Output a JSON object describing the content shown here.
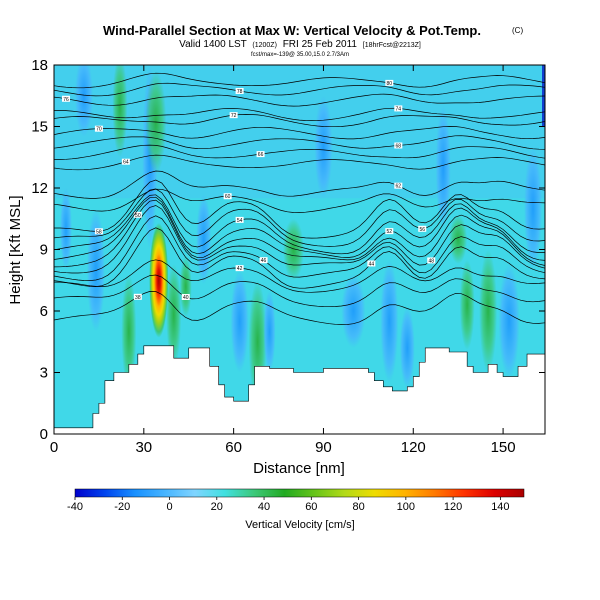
{
  "chart_data": {
    "type": "heatmap",
    "title": "Wind-Parallel Section at Max W: Vertical Velocity & Pot.Temp.",
    "title_mark": "(C)",
    "subtitle": "Valid 1400 LST",
    "subtitle_small_1": "(1200Z)",
    "subtitle_date": "FRI 25 Feb 2011",
    "subtitle_small_2": "[18hrFcst@2213Z]",
    "info_line": "fcst/max=-139@ 35.00,15.0  2.7/3Am",
    "xlabel": "Distance [nm]",
    "ylabel": "Height [Kft MSL]",
    "xlim": [
      0,
      164
    ],
    "ylim": [
      0,
      18
    ],
    "xticks": [
      0,
      30,
      60,
      90,
      120,
      150
    ],
    "yticks": [
      0,
      3,
      6,
      9,
      12,
      15,
      18
    ],
    "colorbar": {
      "label": "Vertical Velocity [cm/s]",
      "min": -40,
      "max": 150,
      "ticks": [
        -40,
        -20,
        0,
        20,
        40,
        60,
        80,
        100,
        120,
        140
      ],
      "colors": [
        "#0000cc",
        "#0044ee",
        "#1890ff",
        "#46b4ff",
        "#7fd4ff",
        "#40e0e0",
        "#3cc878",
        "#22aa22",
        "#66c41a",
        "#b2da18",
        "#eedc00",
        "#ffb400",
        "#ff7a00",
        "#ff3200",
        "#dd0000",
        "#aa0000"
      ]
    },
    "terrain_profile": {
      "x": [
        0,
        5,
        10,
        13,
        15,
        17,
        20,
        22,
        25,
        28,
        30,
        33,
        38,
        40,
        42,
        45,
        48,
        52,
        55,
        57,
        60,
        63,
        65,
        67,
        70,
        72,
        75,
        80,
        85,
        90,
        95,
        100,
        105,
        107,
        110,
        113,
        115,
        118,
        120,
        122,
        124,
        128,
        132,
        135,
        138,
        140,
        143,
        145,
        148,
        150,
        152,
        155,
        158,
        160,
        164
      ],
      "height_kft": [
        0.3,
        0.3,
        0.3,
        1.0,
        1.5,
        2.6,
        3.0,
        3.0,
        3.4,
        3.9,
        4.3,
        4.3,
        4.3,
        3.7,
        3.7,
        4.2,
        4.2,
        3.3,
        2.4,
        1.8,
        1.6,
        1.6,
        2.4,
        3.3,
        3.3,
        3.2,
        3.2,
        3.0,
        3.0,
        3.2,
        3.2,
        3.2,
        3.0,
        2.6,
        2.3,
        2.1,
        2.1,
        2.3,
        2.8,
        3.5,
        4.2,
        4.2,
        4.0,
        4.0,
        3.3,
        3.0,
        3.0,
        3.4,
        3.0,
        2.8,
        2.8,
        3.3,
        3.9,
        3.9,
        3.9
      ]
    },
    "theta_contours": [
      {
        "id": 0,
        "label": "38",
        "label_x": 28,
        "mean_kft": 6.0
      },
      {
        "id": 1,
        "label": "40",
        "label_x": 44,
        "mean_kft": 6.9
      },
      {
        "id": 2,
        "label": "42",
        "label_x": 62,
        "mean_kft": 7.6
      },
      {
        "id": 3,
        "label": "44",
        "label_x": 106,
        "mean_kft": 8.1
      },
      {
        "id": 4,
        "label": "46",
        "label_x": 70,
        "mean_kft": 8.5
      },
      {
        "id": 5,
        "label": "48",
        "label_x": 126,
        "mean_kft": 8.9
      },
      {
        "id": 6,
        "label": "50",
        "label_x": 28,
        "mean_kft": 9.2
      },
      {
        "id": 7,
        "label": "52",
        "label_x": 112,
        "mean_kft": 9.5
      },
      {
        "id": 8,
        "label": "54",
        "label_x": 62,
        "mean_kft": 9.8
      },
      {
        "id": 9,
        "label": "56",
        "label_x": 123,
        "mean_kft": 10.2
      },
      {
        "id": 10,
        "label": "58",
        "label_x": 15,
        "mean_kft": 10.6
      },
      {
        "id": 11,
        "label": "60",
        "label_x": 58,
        "mean_kft": 11.3
      },
      {
        "id": 12,
        "label": "62",
        "label_x": 115,
        "mean_kft": 12.0
      },
      {
        "id": 13,
        "label": "64",
        "label_x": 24,
        "mean_kft": 13.2
      },
      {
        "id": 14,
        "label": "66",
        "label_x": 69,
        "mean_kft": 13.7
      },
      {
        "id": 15,
        "label": "68",
        "label_x": 115,
        "mean_kft": 14.2
      },
      {
        "id": 16,
        "label": "70",
        "label_x": 15,
        "mean_kft": 14.7
      },
      {
        "id": 17,
        "label": "72",
        "label_x": 60,
        "mean_kft": 15.3
      },
      {
        "id": 18,
        "label": "74",
        "label_x": 115,
        "mean_kft": 15.6
      },
      {
        "id": 19,
        "label": "76",
        "label_x": 4,
        "mean_kft": 16.3
      },
      {
        "id": 20,
        "label": "78",
        "label_x": 62,
        "mean_kft": 16.8
      },
      {
        "id": 21,
        "label": "80",
        "label_x": 112,
        "mean_kft": 17.2
      }
    ],
    "w_maximum": {
      "x_nm": 35,
      "height_kft": 7.5,
      "value_cms": 145
    }
  }
}
